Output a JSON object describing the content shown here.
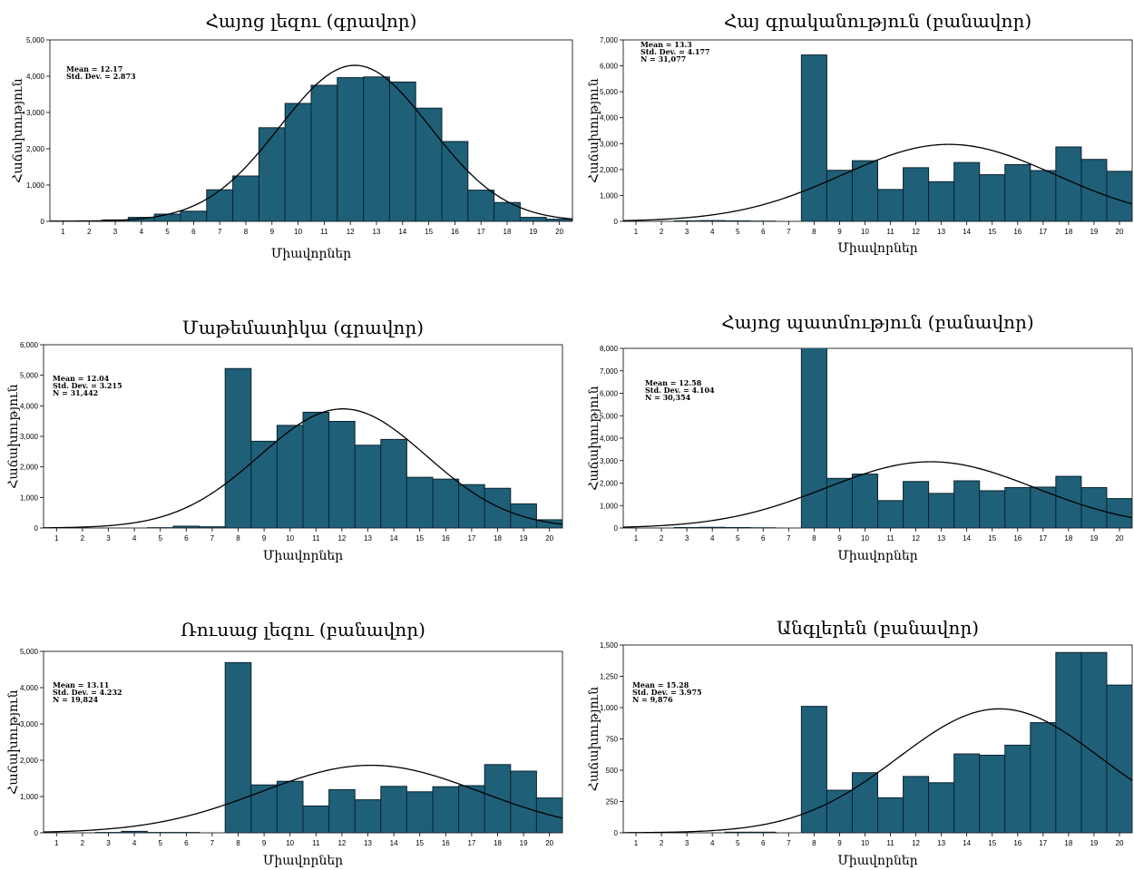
{
  "figure": {
    "xlabel": "Միավորներ",
    "ylabel": "Հաճախություն",
    "bar_color": "#1f5f78",
    "curve_color": "#000000"
  },
  "chart_data": [
    {
      "type": "bar",
      "title": "Հայոց լեզու (գրավոր)",
      "xlabel": "Միավորներ",
      "ylabel": "Հաճախություն",
      "x_range": [
        0.5,
        20.5
      ],
      "ylim": [
        0,
        5000
      ],
      "yticks": [
        0,
        1000,
        2000,
        3000,
        4000,
        5000
      ],
      "ytick_labels": [
        "0",
        "1,000",
        "2,000",
        "3,000",
        "4,000",
        "5,000"
      ],
      "xtick_labels": [
        "1",
        "2",
        "3",
        "4",
        "5",
        "6",
        "7",
        "8",
        "9",
        "10",
        "11",
        "12",
        "13",
        "14",
        "15",
        "16",
        "17",
        "18",
        "19",
        "20"
      ],
      "bins": [
        [
          0.5,
          1.5
        ],
        [
          1.5,
          2.5
        ],
        [
          2.5,
          3.5
        ],
        [
          3.5,
          4.5
        ],
        [
          4.5,
          5.5
        ],
        [
          5.5,
          6.5
        ],
        [
          6.5,
          7.5
        ],
        [
          7.5,
          8.5
        ],
        [
          8.5,
          9.5
        ],
        [
          9.5,
          10.5
        ],
        [
          10.5,
          11.5
        ],
        [
          11.5,
          12.5
        ],
        [
          12.5,
          13.5
        ],
        [
          13.5,
          14.5
        ],
        [
          14.5,
          15.5
        ],
        [
          15.5,
          16.5
        ],
        [
          16.5,
          17.5
        ],
        [
          17.5,
          18.5
        ],
        [
          18.5,
          19.5
        ],
        [
          19.5,
          20.5
        ]
      ],
      "values": [
        10,
        15,
        40,
        110,
        200,
        280,
        870,
        1250,
        2580,
        3250,
        3750,
        3960,
        3980,
        3840,
        3120,
        2200,
        860,
        520,
        110,
        60
      ],
      "stats": [
        "Mean = 12.17",
        "Std. Dev. = 2.873"
      ],
      "normal_curve": {
        "mean": 12.17,
        "sd": 2.873,
        "peak": 4300
      }
    },
    {
      "type": "bar",
      "title": "Հայ գրականություն (բանավոր)",
      "xlabel": "Միավորներ",
      "ylabel": "Հաճախություն",
      "x_range": [
        0.5,
        20.5
      ],
      "ylim": [
        0,
        7000
      ],
      "yticks": [
        0,
        1000,
        2000,
        3000,
        4000,
        5000,
        6000,
        7000
      ],
      "ytick_labels": [
        "0",
        "1,000",
        "2,000",
        "3,000",
        "4,000",
        "5,000",
        "6,000",
        "7,000"
      ],
      "xtick_labels": [
        "1",
        "2",
        "3",
        "4",
        "5",
        "6",
        "7",
        "8",
        "9",
        "10",
        "11",
        "12",
        "13",
        "14",
        "15",
        "16",
        "17",
        "18",
        "19",
        "20"
      ],
      "bins": [
        [
          0.5,
          1.5
        ],
        [
          1.5,
          2.5
        ],
        [
          2.5,
          3.5
        ],
        [
          3.5,
          4.5
        ],
        [
          4.5,
          5.5
        ],
        [
          5.5,
          6.5
        ],
        [
          6.5,
          7.5
        ],
        [
          7.5,
          8.5
        ],
        [
          8.5,
          9.5
        ],
        [
          9.5,
          10.5
        ],
        [
          10.5,
          11.5
        ],
        [
          11.5,
          12.5
        ],
        [
          12.5,
          13.5
        ],
        [
          13.5,
          14.5
        ],
        [
          14.5,
          15.5
        ],
        [
          15.5,
          16.5
        ],
        [
          16.5,
          17.5
        ],
        [
          17.5,
          18.5
        ],
        [
          18.5,
          19.5
        ],
        [
          19.5,
          20.5
        ]
      ],
      "values": [
        0,
        0,
        20,
        30,
        20,
        10,
        0,
        6420,
        1970,
        2340,
        1230,
        2070,
        1530,
        2270,
        1800,
        2190,
        1960,
        2870,
        2390,
        1930
      ],
      "stats": [
        "Mean = 13.3",
        "Std. Dev. = 4.177",
        "N = 31,077"
      ],
      "normal_curve": {
        "mean": 13.3,
        "sd": 4.177,
        "peak": 2970
      }
    },
    {
      "type": "bar",
      "title": "Մաթեմատիկա (գրավոր)",
      "xlabel": "Միավորներ",
      "ylabel": "Հաճախություն",
      "x_range": [
        0.5,
        20.5
      ],
      "ylim": [
        0,
        6000
      ],
      "yticks": [
        0,
        1000,
        2000,
        3000,
        4000,
        5000,
        6000
      ],
      "ytick_labels": [
        "0",
        "1,000",
        "2,000",
        "3,000",
        "4,000",
        "5,000",
        "6,000"
      ],
      "xtick_labels": [
        "1",
        "2",
        "3",
        "4",
        "5",
        "6",
        "7",
        "8",
        "9",
        "10",
        "11",
        "12",
        "13",
        "14",
        "15",
        "16",
        "17",
        "18",
        "19",
        "20"
      ],
      "bins": [
        [
          0.5,
          1.5
        ],
        [
          1.5,
          2.5
        ],
        [
          2.5,
          3.5
        ],
        [
          3.5,
          4.5
        ],
        [
          4.5,
          5.5
        ],
        [
          5.5,
          6.5
        ],
        [
          6.5,
          7.5
        ],
        [
          7.5,
          8.5
        ],
        [
          8.5,
          9.5
        ],
        [
          9.5,
          10.5
        ],
        [
          10.5,
          11.5
        ],
        [
          11.5,
          12.5
        ],
        [
          12.5,
          13.5
        ],
        [
          13.5,
          14.5
        ],
        [
          14.5,
          15.5
        ],
        [
          15.5,
          16.5
        ],
        [
          16.5,
          17.5
        ],
        [
          17.5,
          18.5
        ],
        [
          18.5,
          19.5
        ],
        [
          19.5,
          20.5
        ]
      ],
      "values": [
        0,
        0,
        0,
        0,
        10,
        60,
        40,
        5220,
        2840,
        3360,
        3790,
        3490,
        2710,
        2900,
        1660,
        1600,
        1420,
        1300,
        790,
        270
      ],
      "stats": [
        "Mean = 12.04",
        "Std. Dev. = 3.215",
        "N = 31,442"
      ],
      "normal_curve": {
        "mean": 12.04,
        "sd": 3.215,
        "peak": 3900
      }
    },
    {
      "type": "bar",
      "title": "Հայոց պատմություն (բանավոր)",
      "xlabel": "Միավորներ",
      "ylabel": "Հաճախություն",
      "x_range": [
        0.5,
        20.5
      ],
      "ylim": [
        0,
        8000
      ],
      "yticks": [
        0,
        1000,
        2000,
        3000,
        4000,
        5000,
        6000,
        7000,
        8000
      ],
      "ytick_labels": [
        "0",
        "1,000",
        "2,000",
        "3,000",
        "4,000",
        "5,000",
        "6,000",
        "7,000",
        "8,000"
      ],
      "xtick_labels": [
        "1",
        "2",
        "3",
        "4",
        "5",
        "6",
        "7",
        "8",
        "9",
        "10",
        "11",
        "12",
        "13",
        "14",
        "15",
        "16",
        "17",
        "18",
        "19",
        "20"
      ],
      "bins": [
        [
          0.5,
          1.5
        ],
        [
          1.5,
          2.5
        ],
        [
          2.5,
          3.5
        ],
        [
          3.5,
          4.5
        ],
        [
          4.5,
          5.5
        ],
        [
          5.5,
          6.5
        ],
        [
          6.5,
          7.5
        ],
        [
          7.5,
          8.5
        ],
        [
          8.5,
          9.5
        ],
        [
          9.5,
          10.5
        ],
        [
          10.5,
          11.5
        ],
        [
          11.5,
          12.5
        ],
        [
          12.5,
          13.5
        ],
        [
          13.5,
          14.5
        ],
        [
          14.5,
          15.5
        ],
        [
          15.5,
          16.5
        ],
        [
          16.5,
          17.5
        ],
        [
          17.5,
          18.5
        ],
        [
          18.5,
          19.5
        ],
        [
          19.5,
          20.5
        ]
      ],
      "values": [
        0,
        0,
        20,
        30,
        20,
        10,
        0,
        8110,
        2210,
        2400,
        1220,
        2070,
        1540,
        2100,
        1660,
        1800,
        1820,
        2300,
        1800,
        1310
      ],
      "stats": [
        "Mean = 12.58",
        "Std. Dev. = 4.104",
        "N = 30,354"
      ],
      "normal_curve": {
        "mean": 12.58,
        "sd": 4.104,
        "peak": 2950
      }
    },
    {
      "type": "bar",
      "title": "Ռուսաց լեզու (բանավոր)",
      "xlabel": "Միավորներ",
      "ylabel": "Հաճախություն",
      "x_range": [
        0.5,
        20.5
      ],
      "ylim": [
        0,
        5000
      ],
      "yticks": [
        0,
        1000,
        2000,
        3000,
        4000,
        5000
      ],
      "ytick_labels": [
        "0",
        "1,000",
        "2,000",
        "3,000",
        "4,000",
        "5,000"
      ],
      "xtick_labels": [
        "1",
        "2",
        "3",
        "4",
        "5",
        "6",
        "7",
        "8",
        "9",
        "10",
        "11",
        "12",
        "13",
        "14",
        "15",
        "16",
        "17",
        "18",
        "19",
        "20"
      ],
      "bins": [
        [
          0.5,
          1.5
        ],
        [
          1.5,
          2.5
        ],
        [
          2.5,
          3.5
        ],
        [
          3.5,
          4.5
        ],
        [
          4.5,
          5.5
        ],
        [
          5.5,
          6.5
        ],
        [
          6.5,
          7.5
        ],
        [
          7.5,
          8.5
        ],
        [
          8.5,
          9.5
        ],
        [
          9.5,
          10.5
        ],
        [
          10.5,
          11.5
        ],
        [
          11.5,
          12.5
        ],
        [
          12.5,
          13.5
        ],
        [
          13.5,
          14.5
        ],
        [
          14.5,
          15.5
        ],
        [
          15.5,
          16.5
        ],
        [
          16.5,
          17.5
        ],
        [
          17.5,
          18.5
        ],
        [
          18.5,
          19.5
        ],
        [
          19.5,
          20.5
        ]
      ],
      "values": [
        0,
        0,
        10,
        40,
        10,
        10,
        0,
        4690,
        1320,
        1420,
        740,
        1190,
        910,
        1280,
        1130,
        1270,
        1300,
        1880,
        1700,
        960
      ],
      "stats": [
        "Mean = 13.11",
        "Std. Dev. = 4.232",
        "N = 19,824"
      ],
      "normal_curve": {
        "mean": 13.11,
        "sd": 4.232,
        "peak": 1860
      }
    },
    {
      "type": "bar",
      "title": "Անգլերեն (բանավոր)",
      "xlabel": "Միավորներ",
      "ylabel": "Հաճախություն",
      "x_range": [
        0.5,
        20.5
      ],
      "ylim": [
        0,
        1500
      ],
      "yticks": [
        0,
        250,
        500,
        750,
        1000,
        1250,
        1500
      ],
      "ytick_labels": [
        "0",
        "250",
        "500",
        "750",
        "1,000",
        "1,250",
        "1,500"
      ],
      "xtick_labels": [
        "1",
        "2",
        "3",
        "4",
        "5",
        "6",
        "7",
        "8",
        "9",
        "10",
        "11",
        "12",
        "13",
        "14",
        "15",
        "16",
        "17",
        "18",
        "19",
        "20"
      ],
      "bins": [
        [
          0.5,
          1.5
        ],
        [
          1.5,
          2.5
        ],
        [
          2.5,
          3.5
        ],
        [
          3.5,
          4.5
        ],
        [
          4.5,
          5.5
        ],
        [
          5.5,
          6.5
        ],
        [
          6.5,
          7.5
        ],
        [
          7.5,
          8.5
        ],
        [
          8.5,
          9.5
        ],
        [
          9.5,
          10.5
        ],
        [
          10.5,
          11.5
        ],
        [
          11.5,
          12.5
        ],
        [
          12.5,
          13.5
        ],
        [
          13.5,
          14.5
        ],
        [
          14.5,
          15.5
        ],
        [
          15.5,
          16.5
        ],
        [
          16.5,
          17.5
        ],
        [
          17.5,
          18.5
        ],
        [
          18.5,
          19.5
        ],
        [
          19.5,
          20.5
        ]
      ],
      "values": [
        0,
        0,
        0,
        0,
        5,
        5,
        0,
        1010,
        340,
        480,
        280,
        450,
        400,
        630,
        620,
        700,
        880,
        1440,
        1440,
        1180
      ],
      "stats": [
        "Mean = 15.28",
        "Std. Dev. = 3.975",
        "N = 9,876"
      ],
      "normal_curve": {
        "mean": 15.28,
        "sd": 3.975,
        "peak": 990
      }
    }
  ]
}
